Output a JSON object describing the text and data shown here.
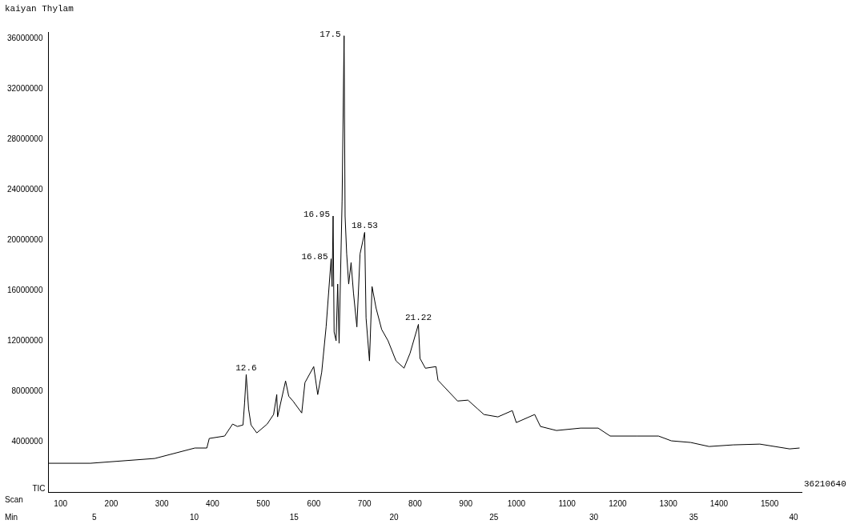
{
  "chart_data": {
    "type": "line",
    "title": "kaiyan Thylam",
    "xlabel": "Min",
    "x2label": "Scan",
    "ylabel": "TIC",
    "xlim": [
      2.7,
      40.4
    ],
    "xticks": [
      5,
      10,
      15,
      20,
      25,
      30,
      35,
      40
    ],
    "x2lim": [
      76,
      1563
    ],
    "x2ticks": [
      100,
      200,
      300,
      400,
      500,
      600,
      700,
      800,
      900,
      1000,
      1100,
      1200,
      1300,
      1400,
      1500
    ],
    "ylim": [
      0,
      36500000
    ],
    "yticks": [
      4000000,
      8000000,
      12000000,
      16000000,
      20000000,
      24000000,
      28000000,
      32000000,
      36000000
    ],
    "grid": false,
    "legend": false,
    "marker": "none",
    "color": "#000000",
    "x": [
      2.7,
      4.8,
      8.02,
      10.03,
      10.63,
      10.75,
      11.52,
      11.92,
      12.16,
      12.44,
      12.52,
      12.6,
      12.72,
      12.84,
      13.13,
      13.65,
      13.97,
      14.13,
      14.17,
      14.57,
      14.73,
      14.94,
      15.38,
      15.54,
      15.98,
      16.18,
      16.38,
      16.6,
      16.85,
      16.9,
      16.95,
      17.0,
      17.1,
      17.18,
      17.25,
      17.4,
      17.5,
      17.55,
      17.63,
      17.73,
      17.85,
      17.97,
      18.14,
      18.3,
      18.53,
      18.6,
      18.77,
      18.9,
      19.1,
      19.38,
      19.7,
      20.1,
      20.5,
      20.8,
      21.22,
      21.3,
      21.57,
      22.1,
      22.2,
      23.18,
      23.7,
      24.19,
      24.5,
      25.2,
      25.92,
      26.12,
      27.04,
      27.33,
      28.13,
      29.34,
      30.22,
      30.82,
      32.15,
      33.24,
      33.88,
      34.85,
      35.77,
      36.98,
      38.31,
      39.8,
      40.3
    ],
    "values": [
      2280000,
      2280000,
      2660000,
      3490000,
      3490000,
      4250000,
      4440000,
      5390000,
      5200000,
      5320000,
      7100000,
      9320000,
      6590000,
      5320000,
      4690000,
      5390000,
      6150000,
      7730000,
      5960000,
      8810000,
      7600000,
      7220000,
      6270000,
      8680000,
      9950000,
      7730000,
      9510000,
      13100000,
      18500000,
      16300000,
      21900000,
      12700000,
      12000000,
      16500000,
      11800000,
      23100000,
      36200000,
      21900000,
      18900000,
      16500000,
      18200000,
      15800000,
      13100000,
      18900000,
      20600000,
      13800000,
      10400000,
      16300000,
      14600000,
      12900000,
      12000000,
      10400000,
      9830000,
      11000000,
      13300000,
      10600000,
      9820000,
      9950000,
      8870000,
      7220000,
      7290000,
      6590000,
      6150000,
      5960000,
      6460000,
      5510000,
      6150000,
      5200000,
      4880000,
      5070000,
      5070000,
      4440000,
      4440000,
      4440000,
      4060000,
      3930000,
      3610000,
      3740000,
      3800000,
      3420000,
      3490000
    ],
    "annotations": [
      {
        "text": "12.6",
        "x": 12.6,
        "y": 9320000
      },
      {
        "text": "16.85",
        "x": 16.85,
        "y": 18500000
      },
      {
        "text": "16.95",
        "x": 16.95,
        "y": 21900000
      },
      {
        "text": "17.5",
        "x": 17.5,
        "y": 36200000
      },
      {
        "text": "18.53",
        "x": 18.53,
        "y": 20600000
      },
      {
        "text": "21.22",
        "x": 21.22,
        "y": 13300000
      },
      "36210640"
    ]
  }
}
